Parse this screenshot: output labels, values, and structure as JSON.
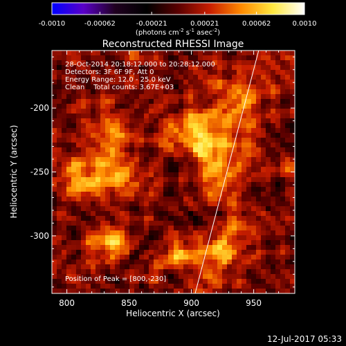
{
  "colorbar": {
    "ticks": [
      "-0.0010",
      "-0.00062",
      "-0.00021",
      "0.00021",
      "0.00062",
      "0.0010"
    ],
    "tick_values": [
      -0.001,
      -0.00062,
      -0.00021,
      0.00021,
      0.00062,
      0.001
    ],
    "unit_main": "(photons cm",
    "unit_sup1": "-2",
    "unit_mid": " s",
    "unit_sup2": "-1",
    "unit_mid2": " asec",
    "unit_sup3": "-2",
    "unit_end": ")",
    "colors": [
      "#0000ff",
      "#5a00c8",
      "#200020",
      "#000000",
      "#5a0000",
      "#c81e00",
      "#ff8a00",
      "#ffe840",
      "#ffffff"
    ]
  },
  "chart_data": {
    "type": "heatmap",
    "title": "Reconstructed RHESSI Image",
    "xlabel": "Heliocentric X (arcsec)",
    "ylabel": "Heliocentric Y (arcsec)",
    "xlim": [
      788,
      983
    ],
    "ylim": [
      -345,
      -155
    ],
    "xticks": [
      "800",
      "850",
      "900",
      "950"
    ],
    "xtick_values": [
      800,
      850,
      900,
      950
    ],
    "yticks": [
      "-200",
      "-250",
      "-300"
    ],
    "ytick_values": [
      -200,
      -250,
      -300
    ],
    "limb_line": [
      [
        903,
        -345
      ],
      [
        954,
        -155
      ]
    ],
    "peak_position": [
      800,
      -230
    ],
    "info": [
      "28-Oct-2014 20:18:12.000 to 20:28:12.000",
      "Detectors: 3F 6F 9F, Att 0",
      "Energy Range: 12.0 - 25.0 keV",
      "Clean    Total counts: 3.67E+03"
    ],
    "peak_label": "Position of Peak = [800,-230]"
  },
  "timestamp": "12-Jul-2017 05:33"
}
